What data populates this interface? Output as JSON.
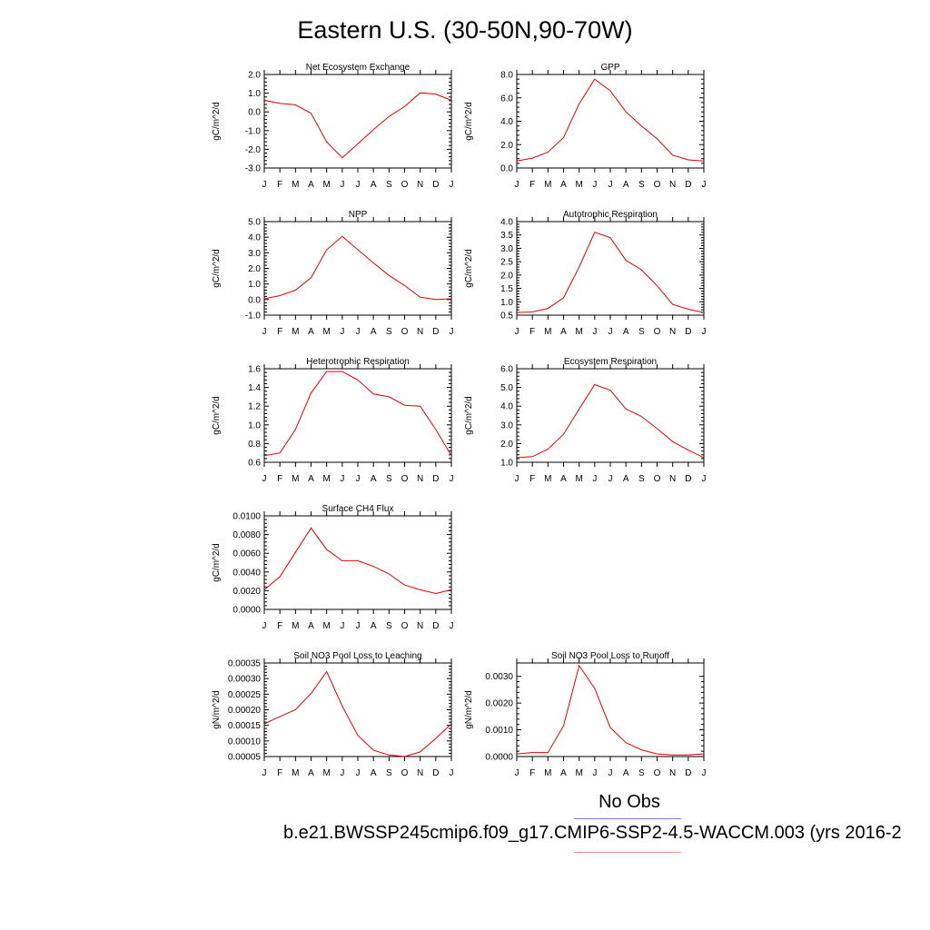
{
  "title": "Eastern U.S. (30-50N,90-70W)",
  "legend": {
    "obs_label": "No Obs",
    "run_label": "b.e21.BWSSP245cmip6.f09_g17.CMIP6-SSP2-4.5-WACCM.003 (yrs 2016-2"
  },
  "colors": {
    "model_line": "#e00000",
    "obs_line": "#7b7bff",
    "run_line": "#ff8a8a"
  },
  "chart_data": [
    {
      "type": "line",
      "title": "Net Ecosystem Exchange",
      "ylabel": "gC/m^2/d",
      "categories": [
        "J",
        "F",
        "M",
        "A",
        "M",
        "J",
        "J",
        "A",
        "S",
        "O",
        "N",
        "D",
        "J"
      ],
      "values": [
        0.62,
        0.45,
        0.38,
        -0.08,
        -1.6,
        -2.45,
        -1.7,
        -0.95,
        -0.25,
        0.28,
        1.02,
        0.95,
        0.62
      ],
      "ylim": [
        -3.0,
        2.0
      ],
      "yticks": [
        -3.0,
        -2.0,
        -1.0,
        0.0,
        1.0,
        2.0
      ],
      "yticklabels": [
        "-3.0",
        "-2.0",
        "-1.0",
        "0.0",
        "1.0",
        "2.0"
      ]
    },
    {
      "type": "line",
      "title": "GPP",
      "ylabel": "gC/m^2/d",
      "categories": [
        "J",
        "F",
        "M",
        "A",
        "M",
        "J",
        "J",
        "A",
        "S",
        "O",
        "N",
        "D",
        "J"
      ],
      "values": [
        0.6,
        0.85,
        1.35,
        2.6,
        5.5,
        7.6,
        6.6,
        4.8,
        3.6,
        2.5,
        1.1,
        0.7,
        0.6
      ],
      "ylim": [
        0.0,
        8.0
      ],
      "yticks": [
        0.0,
        2.0,
        4.0,
        6.0,
        8.0
      ],
      "yticklabels": [
        "0.0",
        "2.0",
        "4.0",
        "6.0",
        "8.0"
      ]
    },
    {
      "type": "line",
      "title": "NPP",
      "ylabel": "gC/m^2/d",
      "categories": [
        "J",
        "F",
        "M",
        "A",
        "M",
        "J",
        "J",
        "A",
        "S",
        "O",
        "N",
        "D",
        "J"
      ],
      "values": [
        0.05,
        0.25,
        0.6,
        1.4,
        3.2,
        4.05,
        3.2,
        2.35,
        1.55,
        0.9,
        0.15,
        0.0,
        0.05
      ],
      "ylim": [
        -1.0,
        5.0
      ],
      "yticks": [
        -1.0,
        0.0,
        1.0,
        2.0,
        3.0,
        4.0,
        5.0
      ],
      "yticklabels": [
        "-1.0",
        "0.0",
        "1.0",
        "2.0",
        "3.0",
        "4.0",
        "5.0"
      ]
    },
    {
      "type": "line",
      "title": "Autotrophic Respiration",
      "ylabel": "gC/m^2/d",
      "categories": [
        "J",
        "F",
        "M",
        "A",
        "M",
        "J",
        "J",
        "A",
        "S",
        "O",
        "N",
        "D",
        "J"
      ],
      "values": [
        0.6,
        0.62,
        0.75,
        1.15,
        2.3,
        3.6,
        3.4,
        2.55,
        2.2,
        1.6,
        0.9,
        0.72,
        0.6
      ],
      "ylim": [
        0.5,
        4.0
      ],
      "yticks": [
        0.5,
        1.0,
        1.5,
        2.0,
        2.5,
        3.0,
        3.5,
        4.0
      ],
      "yticklabels": [
        "0.5",
        "1.0",
        "1.5",
        "2.0",
        "2.5",
        "3.0",
        "3.5",
        "4.0"
      ]
    },
    {
      "type": "line",
      "title": "Heterotrophic Respiration",
      "ylabel": "gC/m^2/d",
      "categories": [
        "J",
        "F",
        "M",
        "A",
        "M",
        "J",
        "J",
        "A",
        "S",
        "O",
        "N",
        "D",
        "J"
      ],
      "values": [
        0.67,
        0.7,
        0.95,
        1.34,
        1.57,
        1.57,
        1.48,
        1.33,
        1.3,
        1.21,
        1.2,
        0.95,
        0.67
      ],
      "ylim": [
        0.6,
        1.6
      ],
      "yticks": [
        0.6,
        0.8,
        1.0,
        1.2,
        1.4,
        1.6
      ],
      "yticklabels": [
        "0.6",
        "0.8",
        "1.0",
        "1.2",
        "1.4",
        "1.6"
      ]
    },
    {
      "type": "line",
      "title": "Ecosystem Respiration",
      "ylabel": "gC/m^2/d",
      "categories": [
        "J",
        "F",
        "M",
        "A",
        "M",
        "J",
        "J",
        "A",
        "S",
        "O",
        "N",
        "D",
        "J"
      ],
      "values": [
        1.25,
        1.3,
        1.7,
        2.5,
        3.85,
        5.15,
        4.85,
        3.85,
        3.45,
        2.8,
        2.1,
        1.65,
        1.25
      ],
      "ylim": [
        1.0,
        6.0
      ],
      "yticks": [
        1.0,
        2.0,
        3.0,
        4.0,
        5.0,
        6.0
      ],
      "yticklabels": [
        "1.0",
        "2.0",
        "3.0",
        "4.0",
        "5.0",
        "6.0"
      ]
    },
    {
      "type": "line",
      "title": "Surface CH4 Flux",
      "ylabel": "gC/m^2/d",
      "categories": [
        "J",
        "F",
        "M",
        "A",
        "M",
        "J",
        "J",
        "A",
        "S",
        "O",
        "N",
        "D",
        "J"
      ],
      "values": [
        0.0021,
        0.0035,
        0.0061,
        0.0087,
        0.0064,
        0.0052,
        0.0052,
        0.0046,
        0.0038,
        0.0026,
        0.0021,
        0.0017,
        0.0021
      ],
      "ylim": [
        0.0,
        0.01
      ],
      "yticks": [
        0.0,
        0.002,
        0.004,
        0.006,
        0.008,
        0.01
      ],
      "yticklabels": [
        "0.0000",
        "0.0020",
        "0.0040",
        "0.0060",
        "0.0080",
        "0.0100"
      ]
    },
    {
      "type": "line",
      "title": "Soil NO3 Pool Loss to Leaching",
      "ylabel": "gN/m^2/d",
      "categories": [
        "J",
        "F",
        "M",
        "A",
        "M",
        "J",
        "J",
        "A",
        "S",
        "O",
        "N",
        "D",
        "J"
      ],
      "values": [
        0.000155,
        0.000178,
        0.0002,
        0.000252,
        0.000322,
        0.000212,
        0.000118,
        7e-05,
        5.5e-05,
        5e-05,
        6.5e-05,
        0.000108,
        0.000155
      ],
      "ylim": [
        5e-05,
        0.00035
      ],
      "yticks": [
        5e-05,
        0.0001,
        0.00015,
        0.0002,
        0.00025,
        0.0003,
        0.00035
      ],
      "yticklabels": [
        "0.00005",
        "0.00010",
        "0.00015",
        "0.00020",
        "0.00025",
        "0.00030",
        "0.00035"
      ]
    },
    {
      "type": "line",
      "title": "Soil NO3 Pool Loss to Runoff",
      "ylabel": "gN/m^2/d",
      "categories": [
        "J",
        "F",
        "M",
        "A",
        "M",
        "J",
        "J",
        "A",
        "S",
        "O",
        "N",
        "D",
        "J"
      ],
      "values": [
        0.0001,
        0.00015,
        0.00015,
        0.00115,
        0.0034,
        0.00255,
        0.00108,
        0.00052,
        0.00025,
        0.0001,
        6e-05,
        6e-05,
        0.0001
      ],
      "ylim": [
        0.0,
        0.0035
      ],
      "yticks": [
        0.0,
        0.001,
        0.002,
        0.003
      ],
      "yticklabels": [
        "0.0000",
        "0.0010",
        "0.0020",
        "0.0030"
      ]
    }
  ]
}
